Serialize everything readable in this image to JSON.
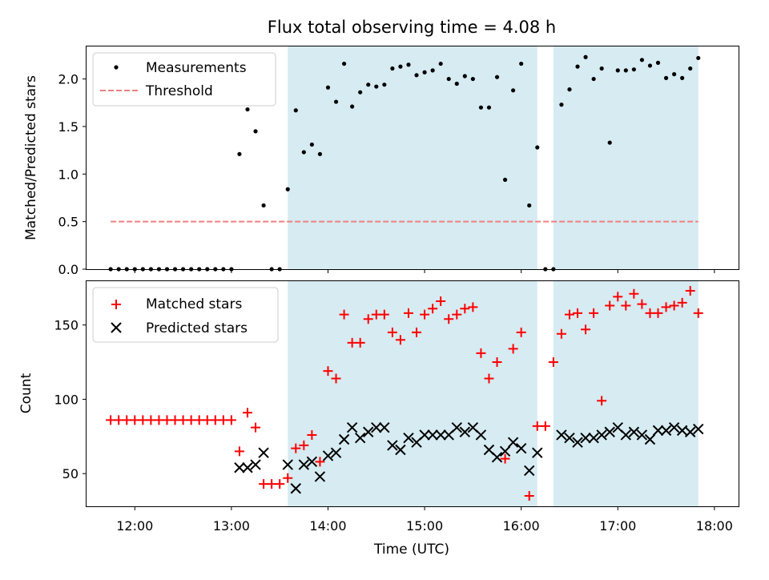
{
  "chart_data": [
    {
      "type": "scatter",
      "title": "Flux total observing time = 4.08 h",
      "ylabel": "Matched/Predicted stars",
      "xlabel": "",
      "ylim": [
        0,
        2.35
      ],
      "xlim": [
        "11:30",
        "18:15"
      ],
      "yticks": [
        "0.0",
        "0.5",
        "1.0",
        "1.5",
        "2.0"
      ],
      "legend": {
        "placement": "top-left",
        "entries": [
          "Measurements",
          "Threshold"
        ]
      },
      "shaded_intervals": [
        [
          "13:35",
          "16:10"
        ],
        [
          "16:20",
          "17:50"
        ]
      ],
      "threshold": {
        "name": "Threshold",
        "y": 0.5,
        "x": [
          "11:45",
          "17:50"
        ],
        "color": "#f08080"
      },
      "series": [
        {
          "name": "Measurements",
          "color": "#000000",
          "x": [
            "11:45",
            "11:50",
            "11:55",
            "12:00",
            "12:05",
            "12:10",
            "12:15",
            "12:20",
            "12:25",
            "12:30",
            "12:35",
            "12:40",
            "12:45",
            "12:50",
            "12:55",
            "13:00",
            "13:05",
            "13:10",
            "13:15",
            "13:20",
            "13:25",
            "13:30",
            "13:35",
            "13:40",
            "13:45",
            "13:50",
            "13:55",
            "14:00",
            "14:05",
            "14:10",
            "14:15",
            "14:20",
            "14:25",
            "14:30",
            "14:35",
            "14:40",
            "14:45",
            "14:50",
            "14:55",
            "15:00",
            "15:05",
            "15:10",
            "15:15",
            "15:20",
            "15:25",
            "15:30",
            "15:35",
            "15:40",
            "15:45",
            "15:50",
            "15:55",
            "16:00",
            "16:05",
            "16:10",
            "16:15",
            "16:20",
            "16:25",
            "16:30",
            "16:35",
            "16:40",
            "16:45",
            "16:50",
            "16:55",
            "17:00",
            "17:05",
            "17:10",
            "17:15",
            "17:20",
            "17:25",
            "17:30",
            "17:35",
            "17:40",
            "17:45",
            "17:50"
          ],
          "y": [
            0,
            0,
            0,
            0,
            0,
            0,
            0,
            0,
            0,
            0,
            0,
            0,
            0,
            0,
            0,
            0,
            1.21,
            1.68,
            1.45,
            0.67,
            0,
            0,
            0.84,
            1.67,
            1.23,
            1.31,
            1.21,
            1.91,
            1.76,
            2.16,
            1.71,
            1.86,
            1.94,
            1.92,
            1.94,
            2.11,
            2.13,
            2.15,
            2.04,
            2.07,
            2.09,
            2.16,
            2.0,
            1.95,
            2.03,
            2.0,
            1.7,
            1.7,
            2.02,
            0.94,
            1.88,
            2.16,
            0.67,
            1.28,
            0,
            0,
            1.73,
            1.89,
            2.13,
            2.23,
            2.0,
            2.11,
            1.33,
            2.09,
            2.09,
            2.1,
            2.2,
            2.14,
            2.17,
            2.01,
            2.05,
            2.01,
            2.11,
            2.22
          ]
        }
      ]
    },
    {
      "type": "scatter",
      "title": "",
      "xlabel": "Time (UTC)",
      "ylabel": "Count",
      "ylim": [
        28,
        180
      ],
      "xlim": [
        "11:30",
        "18:15"
      ],
      "yticks": [
        "50",
        "100",
        "150"
      ],
      "xticks": [
        "12:00",
        "13:00",
        "14:00",
        "15:00",
        "16:00",
        "17:00",
        "18:00"
      ],
      "legend": {
        "placement": "top-left",
        "entries": [
          "Matched stars",
          "Predicted stars"
        ]
      },
      "shaded_intervals": [
        [
          "13:35",
          "16:10"
        ],
        [
          "16:20",
          "17:50"
        ]
      ],
      "series": [
        {
          "name": "Matched stars",
          "marker": "plus",
          "color": "#ff0000",
          "x": [
            "11:45",
            "11:50",
            "11:55",
            "12:00",
            "12:05",
            "12:10",
            "12:15",
            "12:20",
            "12:25",
            "12:30",
            "12:35",
            "12:40",
            "12:45",
            "12:50",
            "12:55",
            "13:00",
            "13:05",
            "13:10",
            "13:15",
            "13:20",
            "13:25",
            "13:30",
            "13:35",
            "13:40",
            "13:45",
            "13:50",
            "13:55",
            "14:00",
            "14:05",
            "14:10",
            "14:15",
            "14:20",
            "14:25",
            "14:30",
            "14:35",
            "14:40",
            "14:45",
            "14:50",
            "14:55",
            "15:00",
            "15:05",
            "15:10",
            "15:15",
            "15:20",
            "15:25",
            "15:30",
            "15:35",
            "15:40",
            "15:45",
            "15:50",
            "15:55",
            "16:00",
            "16:05",
            "16:10",
            "16:15",
            "16:20",
            "16:25",
            "16:30",
            "16:35",
            "16:40",
            "16:45",
            "16:50",
            "16:55",
            "17:00",
            "17:05",
            "17:10",
            "17:15",
            "17:20",
            "17:25",
            "17:30",
            "17:35",
            "17:40",
            "17:45",
            "17:50"
          ],
          "y": [
            86,
            86,
            86,
            86,
            86,
            86,
            86,
            86,
            86,
            86,
            86,
            86,
            86,
            86,
            86,
            86,
            65,
            91,
            81,
            43,
            43,
            43,
            47,
            67,
            69,
            76,
            58,
            119,
            114,
            157,
            138,
            138,
            154,
            157,
            157,
            145,
            140,
            158,
            145,
            157,
            161,
            166,
            154,
            157,
            161,
            162,
            131,
            114,
            125,
            60,
            134,
            145,
            35,
            82,
            82,
            125,
            144,
            157,
            158,
            147,
            158,
            99,
            163,
            169,
            163,
            171,
            164,
            158,
            158,
            162,
            163,
            165,
            173,
            158
          ]
        },
        {
          "name": "Predicted stars",
          "marker": "x",
          "color": "#000000",
          "x": [
            "13:05",
            "13:10",
            "13:15",
            "13:20",
            "13:35",
            "13:40",
            "13:45",
            "13:50",
            "13:55",
            "14:00",
            "14:05",
            "14:10",
            "14:15",
            "14:20",
            "14:25",
            "14:30",
            "14:35",
            "14:40",
            "14:45",
            "14:50",
            "14:55",
            "15:00",
            "15:05",
            "15:10",
            "15:15",
            "15:20",
            "15:25",
            "15:30",
            "15:35",
            "15:40",
            "15:45",
            "15:50",
            "15:55",
            "16:00",
            "16:05",
            "16:10",
            "16:25",
            "16:30",
            "16:35",
            "16:40",
            "16:45",
            "16:50",
            "16:55",
            "17:00",
            "17:05",
            "17:10",
            "17:15",
            "17:20",
            "17:25",
            "17:30",
            "17:35",
            "17:40",
            "17:45",
            "17:50"
          ],
          "y": [
            54,
            54,
            56,
            64,
            56,
            40,
            56,
            58,
            48,
            62,
            64,
            73,
            81,
            74,
            78,
            81,
            81,
            69,
            66,
            74,
            71,
            76,
            76,
            76,
            76,
            81,
            78,
            81,
            76,
            66,
            61,
            65,
            71,
            67,
            52,
            64,
            76,
            74,
            71,
            74,
            74,
            76,
            78,
            81,
            76,
            78,
            76,
            73,
            79,
            79,
            81,
            79,
            78,
            80
          ]
        }
      ]
    }
  ]
}
